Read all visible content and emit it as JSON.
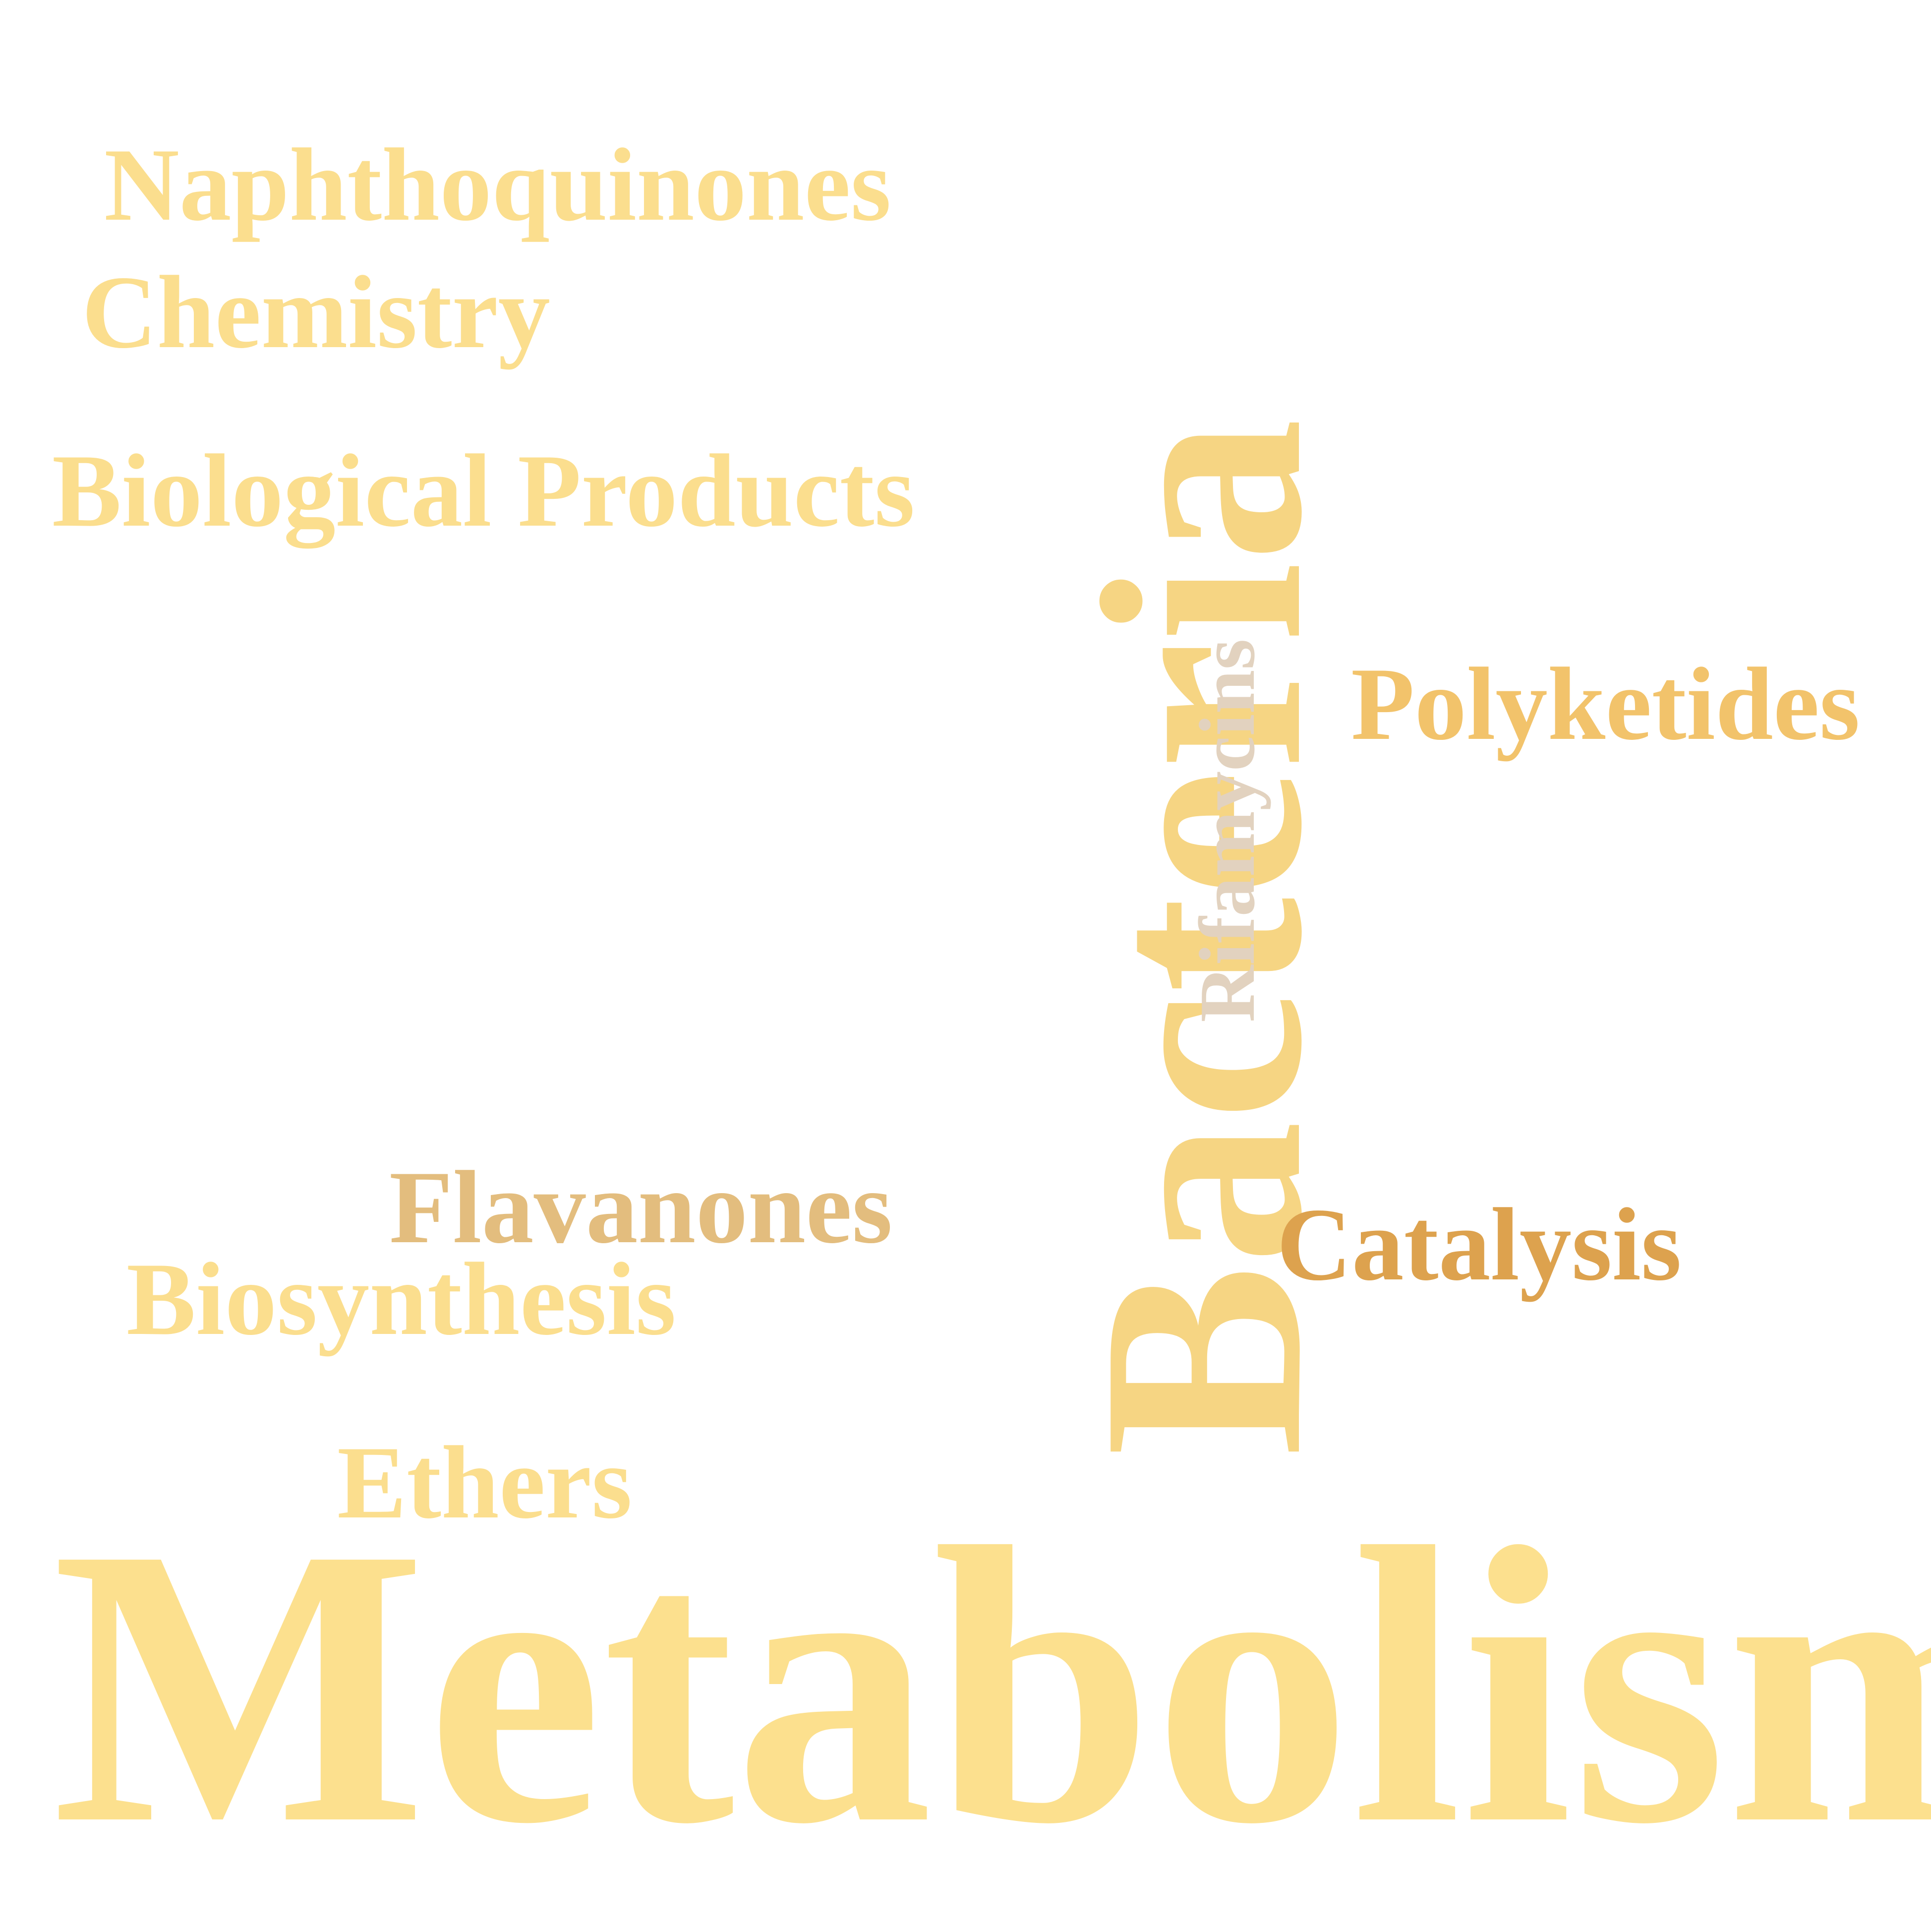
{
  "words": {
    "naphthoquinones": {
      "text": "Naphthoquinones",
      "color": "#FBDE8E"
    },
    "chemistry": {
      "text": "Chemistry",
      "color": "#FBDE8E"
    },
    "biological_products": {
      "text": "Biological Products",
      "color": "#FBDE8E"
    },
    "bacteria": {
      "text": "Bacteria",
      "color": "#F6D583",
      "orientation": "vertical"
    },
    "rifamycins": {
      "text": "Rifamycins",
      "color": "#E2D2BF",
      "orientation": "vertical"
    },
    "polyketides": {
      "text": "Polyketides",
      "color": "#F2C36B"
    },
    "flavanones": {
      "text": "Flavanones",
      "color": "#E3BD7E"
    },
    "catalysis": {
      "text": "Catalysis",
      "color": "#DDA24E"
    },
    "biosynthesis": {
      "text": "Biosynthesis",
      "color": "#FBDE8E"
    },
    "ethers": {
      "text": "Ethers",
      "color": "#FBDE8E"
    },
    "metabolism": {
      "text": "Metabolism",
      "color": "#FCE08E"
    }
  }
}
